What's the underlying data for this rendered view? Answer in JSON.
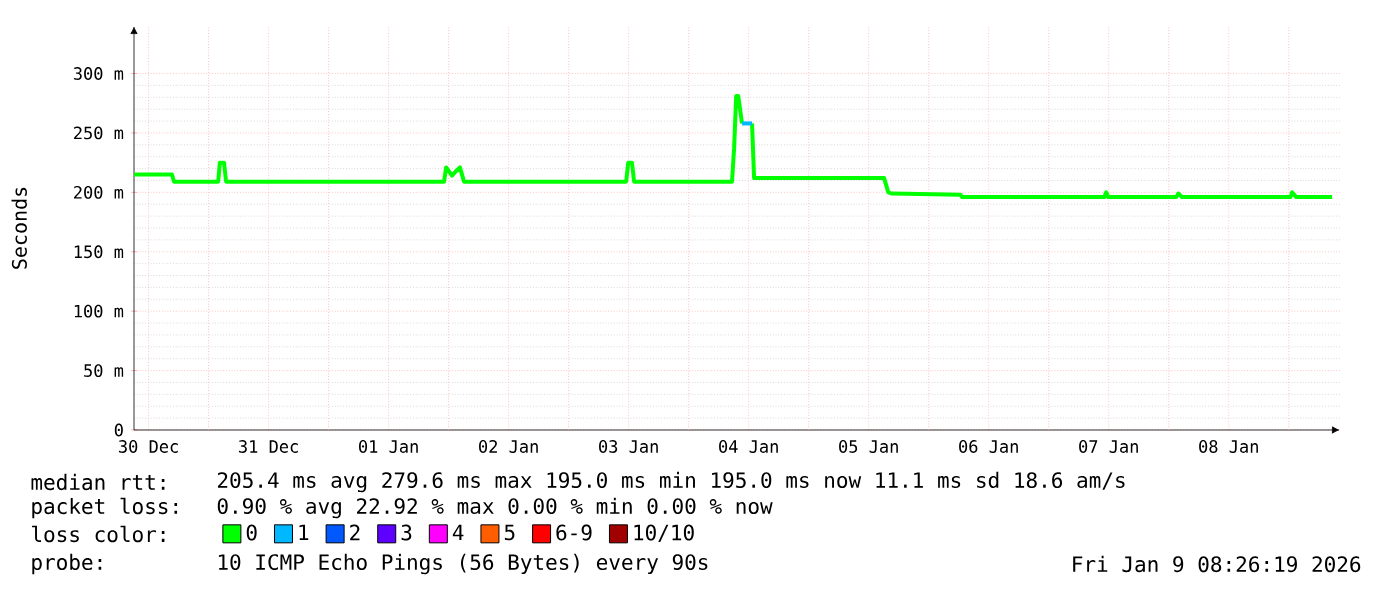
{
  "chart_data": {
    "type": "line",
    "ylabel": "Seconds",
    "legend_title": "loss color:",
    "legend": "bottom",
    "grid": true,
    "xlim": [
      "2025-12-30T09:05",
      "2026-01-09T10:15"
    ],
    "ylim": [
      0,
      340
    ],
    "xticks": [
      {
        "value": "2025-12-30T12:00",
        "label": "30 Dec"
      },
      {
        "value": "2025-12-31T00:00",
        "label": null
      },
      {
        "value": "2025-12-31T12:00",
        "label": "31 Dec"
      },
      {
        "value": "2026-01-01T00:00",
        "label": null
      },
      {
        "value": "2026-01-01T12:00",
        "label": "01 Jan"
      },
      {
        "value": "2026-01-02T00:00",
        "label": null
      },
      {
        "value": "2026-01-02T12:00",
        "label": "02 Jan"
      },
      {
        "value": "2026-01-03T00:00",
        "label": null
      },
      {
        "value": "2026-01-03T12:00",
        "label": "03 Jan"
      },
      {
        "value": "2026-01-04T00:00",
        "label": null
      },
      {
        "value": "2026-01-04T12:00",
        "label": "04 Jan"
      },
      {
        "value": "2026-01-05T00:00",
        "label": null
      },
      {
        "value": "2026-01-05T12:00",
        "label": "05 Jan"
      },
      {
        "value": "2026-01-06T00:00",
        "label": null
      },
      {
        "value": "2026-01-06T12:00",
        "label": "06 Jan"
      },
      {
        "value": "2026-01-07T00:00",
        "label": null
      },
      {
        "value": "2026-01-07T12:00",
        "label": "07 Jan"
      },
      {
        "value": "2026-01-08T00:00",
        "label": null
      },
      {
        "value": "2026-01-08T12:00",
        "label": "08 Jan"
      },
      {
        "value": "2026-01-09T00:00",
        "label": null
      }
    ],
    "yticks": [
      {
        "value": 0,
        "label": "0"
      },
      {
        "value": 50,
        "label": "50 m"
      },
      {
        "value": 100,
        "label": "100 m"
      },
      {
        "value": 150,
        "label": "150 m"
      },
      {
        "value": 200,
        "label": "200 m"
      },
      {
        "value": 250,
        "label": "250 m"
      },
      {
        "value": 300,
        "label": "300 m"
      }
    ],
    "series": [
      {
        "name": "0",
        "color": "#00ff00",
        "x": [
          "2025-12-30T09:06",
          "2025-12-30T16:40",
          "2025-12-30T17:05",
          "2025-12-31T01:55",
          "2025-12-31T02:15",
          "2025-12-31T03:05",
          "2025-12-31T03:30",
          "2026-01-01T23:05",
          "2026-01-01T23:30",
          "2026-01-02T00:40",
          "2026-01-02T01:30",
          "2026-01-02T02:15",
          "2026-01-02T03:05",
          "2026-01-03T11:30",
          "2026-01-03T11:55",
          "2026-01-03T12:40",
          "2026-01-03T13:05",
          "2026-01-04T08:40",
          "2026-01-04T09:05",
          "2026-01-04T09:30",
          "2026-01-04T09:55",
          "2026-01-04T10:40",
          "2026-01-04T11:40",
          "2026-01-04T12:40",
          "2026-01-04T13:05",
          "2026-01-05T15:05",
          "2026-01-05T15:55",
          "2026-01-05T16:40",
          "2026-01-06T06:20",
          "2026-01-06T06:40",
          "2026-01-07T11:05",
          "2026-01-07T11:30",
          "2026-01-07T11:55",
          "2026-01-08T01:30",
          "2026-01-08T01:55",
          "2026-01-08T02:40",
          "2026-01-09T00:20",
          "2026-01-09T00:40",
          "2026-01-09T01:30",
          "2026-01-09T08:40"
        ],
        "values": [
          215,
          215,
          209,
          209,
          225,
          225,
          209,
          209,
          221,
          214,
          218,
          221,
          209,
          209,
          225,
          225,
          209,
          209,
          237,
          281,
          281,
          258,
          null,
          258,
          212,
          212,
          200,
          199,
          198,
          196,
          196,
          200,
          196,
          196,
          199,
          196,
          196,
          200,
          196,
          196
        ]
      },
      {
        "name": "1",
        "color": "#00b8ff",
        "x": [
          "2026-01-04T10:40",
          "2026-01-04T12:40"
        ],
        "values": [
          258,
          258
        ]
      },
      {
        "name": "2",
        "color": "#0059ff"
      },
      {
        "name": "3",
        "color": "#5e00ff"
      },
      {
        "name": "4",
        "color": "#ff00ff"
      },
      {
        "name": "5",
        "color": "#ff5e00"
      },
      {
        "name": "6-9",
        "color": "#ff0000"
      },
      {
        "name": "10/10",
        "color": "#a10000"
      }
    ],
    "annotations": [
      "median rtt:",
      "205.4 ms avg  279.6 ms max  195.0 ms min  195.0 ms now  11.1 ms sd  18.6   am/s",
      "packet loss:",
      "0.90 % avg  22.92 % max  0.00 % min  0.00 % now",
      "probe:",
      "10 ICMP Echo Pings (56 Bytes) every 90s",
      "Fri Jan  9 08:26:19 2026"
    ]
  }
}
